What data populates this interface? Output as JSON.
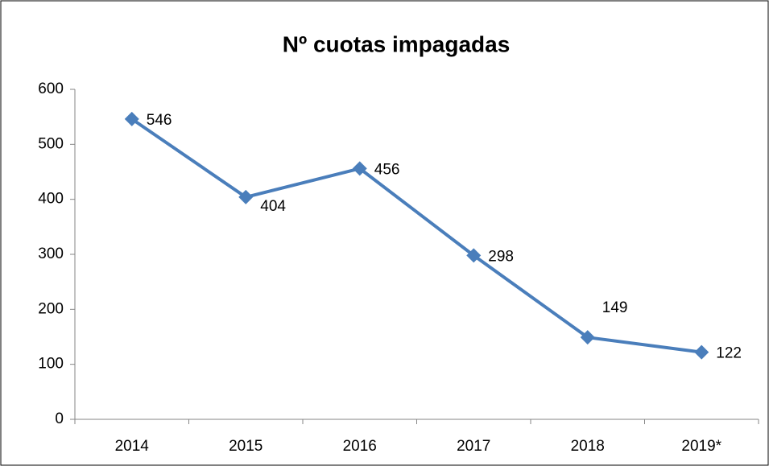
{
  "chart_data": {
    "type": "line",
    "title": "Nº cuotas impagadas",
    "categories": [
      "2014",
      "2015",
      "2016",
      "2017",
      "2018",
      "2019*"
    ],
    "series": [
      {
        "name": "Nº cuotas impagadas",
        "color": "#4a7ebb",
        "values": [
          546,
          404,
          456,
          298,
          149,
          122
        ]
      }
    ],
    "ylim": [
      0,
      600
    ],
    "yticks": [
      0,
      100,
      200,
      300,
      400,
      500,
      600
    ],
    "grid": false,
    "legend": false
  }
}
